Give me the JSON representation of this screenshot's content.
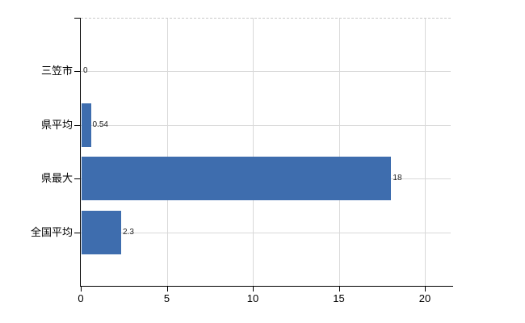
{
  "chart_data": {
    "type": "bar",
    "orientation": "horizontal",
    "title": "",
    "xlabel": "",
    "ylabel": "",
    "categories": [
      "三笠市",
      "県平均",
      "県最大",
      "全国平均"
    ],
    "values": [
      0,
      0.54,
      18,
      2.3
    ],
    "value_labels": [
      "0",
      "0.54",
      "18",
      "2.3"
    ],
    "x_ticks": [
      0,
      5,
      10,
      15,
      20
    ],
    "x_tick_labels": [
      "0",
      "5",
      "10",
      "15",
      "20"
    ],
    "xlim": [
      0,
      21.5
    ],
    "grid": true,
    "legend": false,
    "bar_color": "#3e6dae",
    "gridline_color": "#d9d9d9",
    "axis_color": "#000000",
    "label_color": "#222222",
    "background_color": "#ffffff"
  }
}
